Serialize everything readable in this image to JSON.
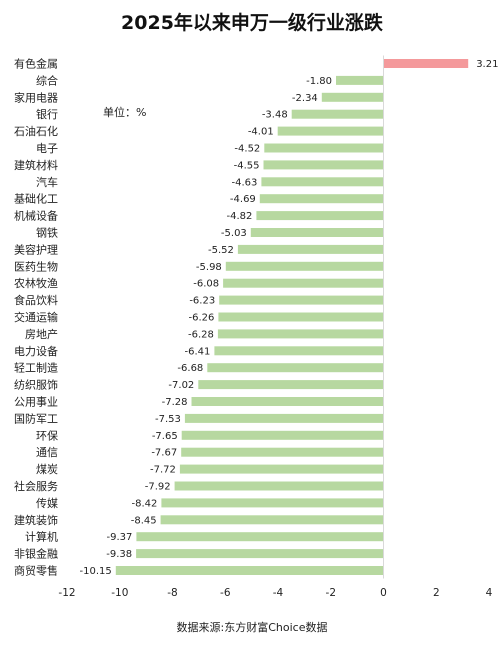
{
  "chart_data": {
    "type": "bar",
    "orientation": "horizontal",
    "title": "2025年以来申万一级行业涨跌",
    "unit_label": "单位：%",
    "source": "数据来源:东方财富Choice数据",
    "xlim": [
      -12,
      4
    ],
    "xticks": [
      "-12",
      "-10",
      "-8",
      "-6",
      "-4",
      "-2",
      "0",
      "2",
      "4"
    ],
    "grid": false,
    "colors": {
      "positive": "#f4999b",
      "negative": "#b7d8a0"
    },
    "categories": [
      "有色金属",
      "综合",
      "家用电器",
      "银行",
      "石油石化",
      "电子",
      "建筑材料",
      "汽车",
      "基础化工",
      "机械设备",
      "钢铁",
      "美容护理",
      "医药生物",
      "农林牧渔",
      "食品饮料",
      "交通运输",
      "房地产",
      "电力设备",
      "轻工制造",
      "纺织服饰",
      "公用事业",
      "国防军工",
      "环保",
      "通信",
      "煤炭",
      "社会服务",
      "传媒",
      "建筑装饰",
      "计算机",
      "非银金融",
      "商贸零售"
    ],
    "values": [
      3.21,
      -1.8,
      -2.34,
      -3.48,
      -4.01,
      -4.52,
      -4.55,
      -4.63,
      -4.69,
      -4.82,
      -5.03,
      -5.52,
      -5.98,
      -6.08,
      -6.23,
      -6.26,
      -6.28,
      -6.41,
      -6.68,
      -7.02,
      -7.28,
      -7.53,
      -7.65,
      -7.67,
      -7.72,
      -7.92,
      -8.42,
      -8.45,
      -9.37,
      -9.38,
      -10.15
    ],
    "value_labels": [
      "3.21",
      "-1.80",
      "-2.34",
      "-3.48",
      "-4.01",
      "-4.52",
      "-4.55",
      "-4.63",
      "-4.69",
      "-4.82",
      "-5.03",
      "-5.52",
      "-5.98",
      "-6.08",
      "-6.23",
      "-6.26",
      "-6.28",
      "-6.41",
      "-6.68",
      "-7.02",
      "-7.28",
      "-7.53",
      "-7.65",
      "-7.67",
      "-7.72",
      "-7.92",
      "-8.42",
      "-8.45",
      "-9.37",
      "-9.38",
      "-10.15"
    ]
  }
}
